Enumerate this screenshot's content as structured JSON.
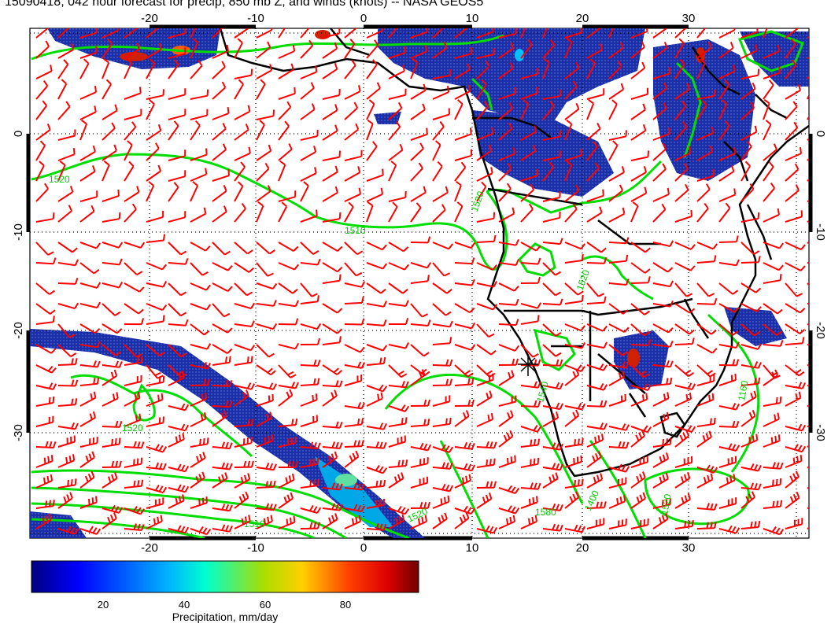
{
  "title": "15090418, 042 hour forecast for precip, 850 mb Z, and winds (knots) -- NASA GEOS5",
  "map": {
    "lon_labels": [
      "-20",
      "-10",
      "0",
      "10",
      "20",
      "30"
    ],
    "lat_labels": [
      "0",
      "-10",
      "-20",
      "-30"
    ],
    "contour_labels": [
      "1520",
      "1510",
      "1520",
      "1520",
      "1540",
      "1520",
      "1510",
      "1520",
      "1580",
      "1400",
      "1520",
      "1160"
    ],
    "colors": {
      "wind_barbs": "#ff0000",
      "contours": "#00dd00",
      "coast": "#000000",
      "precip_low": "#000080",
      "precip_high": "#7f0000"
    }
  },
  "colorbar": {
    "ticks": [
      "20",
      "40",
      "60",
      "80"
    ],
    "title": "Precipitation, mm/day",
    "range": [
      0,
      100
    ]
  }
}
